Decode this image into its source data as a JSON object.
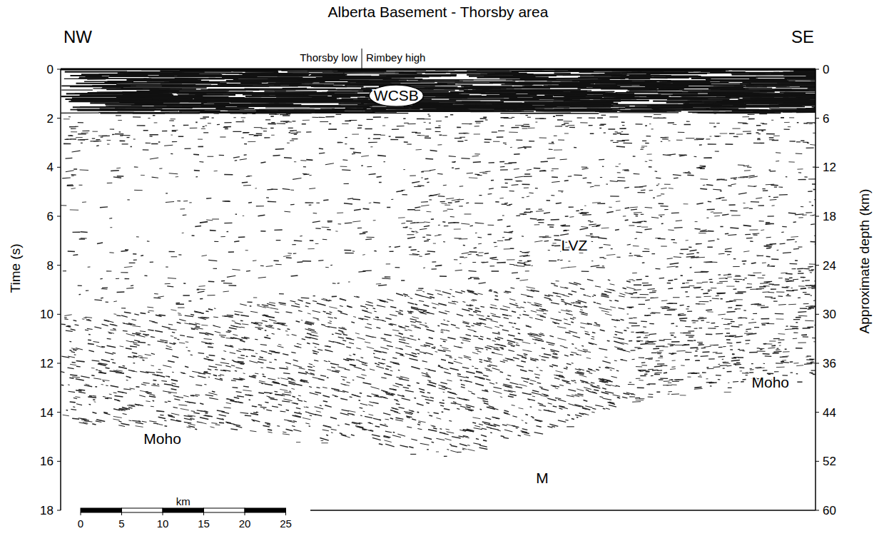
{
  "chart_data": {
    "type": "seismic_section",
    "title": "Alberta Basement - Thorsby area",
    "left_label": "NW",
    "right_label": "SE",
    "domains": [
      "Thorsby low",
      "Rimbey high"
    ],
    "domain_boundary": 36.7,
    "ylabel": "Time (s)",
    "ylim": [
      0,
      18
    ],
    "yticks": [
      0,
      2,
      4,
      6,
      8,
      10,
      12,
      14,
      16,
      18
    ],
    "xlim": [
      0,
      92
    ],
    "depth_axis": {
      "label": "Approximate depth (km)",
      "ticks": [
        0,
        6,
        12,
        18,
        24,
        30,
        36,
        44,
        52,
        60
      ],
      "times": [
        0,
        2,
        4,
        6,
        8,
        10,
        12,
        14,
        16,
        18
      ]
    },
    "scale_bar": {
      "label": "km",
      "ticks": [
        0,
        5,
        10,
        15,
        20,
        25
      ]
    },
    "annotations": [
      {
        "text": "WCSB",
        "x": 40.9,
        "y": 1.08,
        "marker": "ellipse"
      },
      {
        "text": "LVZ",
        "x": 62.6,
        "y": 7.2
      },
      {
        "text": "Moho",
        "x": 12.4,
        "y": 15.1
      },
      {
        "text": "Moho",
        "x": 86.5,
        "y": 12.8
      },
      {
        "text": "M",
        "x": 58.7,
        "y": 16.7
      }
    ]
  }
}
